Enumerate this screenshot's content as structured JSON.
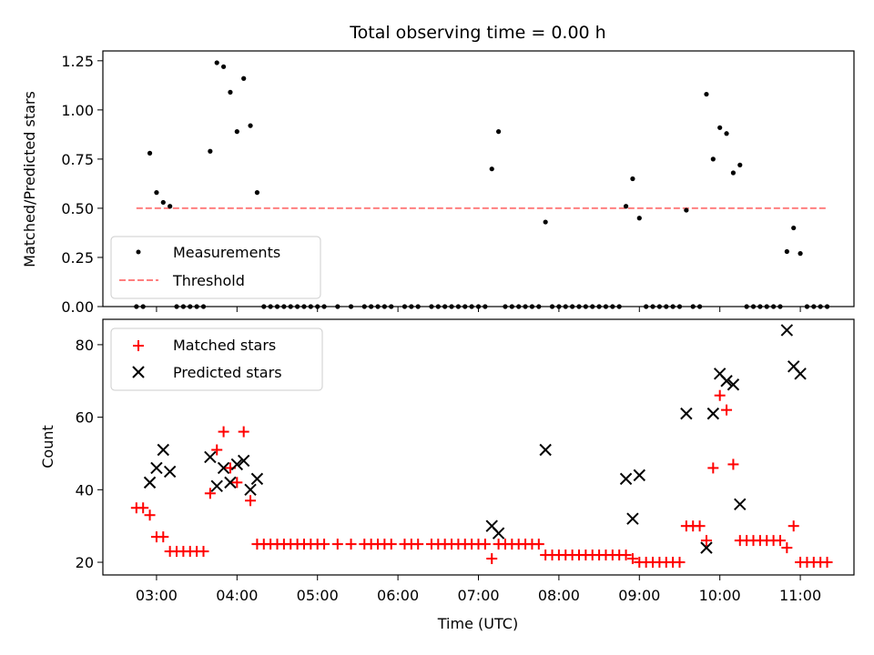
{
  "chart_data": [
    {
      "type": "scatter",
      "title": "Total observing time = 0.00 h",
      "ylabel": "Matched/Predicted stars",
      "xlim": [
        "02:20",
        "11:40"
      ],
      "ylim": [
        0,
        1.3
      ],
      "yticks": [
        "0.00",
        "0.25",
        "0.50",
        "0.75",
        "1.00",
        "1.25"
      ],
      "legend_position": "lower-left",
      "colors": {
        "measurements": "#000000",
        "threshold": "#ff7f7f"
      },
      "series": [
        {
          "name": "Measurements",
          "marker": "dot",
          "points": [
            [
              "02:45",
              0
            ],
            [
              "02:50",
              0
            ],
            [
              "02:55",
              0.78
            ],
            [
              "03:00",
              0.58
            ],
            [
              "03:05",
              0.53
            ],
            [
              "03:10",
              0.51
            ],
            [
              "03:15",
              0
            ],
            [
              "03:20",
              0
            ],
            [
              "03:25",
              0
            ],
            [
              "03:30",
              0
            ],
            [
              "03:35",
              0
            ],
            [
              "03:40",
              0.79
            ],
            [
              "03:45",
              1.24
            ],
            [
              "03:50",
              1.22
            ],
            [
              "03:55",
              1.09
            ],
            [
              "04:00",
              0.89
            ],
            [
              "04:05",
              1.16
            ],
            [
              "04:10",
              0.92
            ],
            [
              "04:15",
              0.58
            ],
            [
              "04:20",
              0
            ],
            [
              "04:25",
              0
            ],
            [
              "04:30",
              0
            ],
            [
              "04:35",
              0
            ],
            [
              "04:40",
              0
            ],
            [
              "04:45",
              0
            ],
            [
              "04:50",
              0
            ],
            [
              "04:55",
              0
            ],
            [
              "05:00",
              0
            ],
            [
              "05:05",
              0
            ],
            [
              "05:15",
              0
            ],
            [
              "05:25",
              0
            ],
            [
              "05:35",
              0
            ],
            [
              "05:40",
              0
            ],
            [
              "05:45",
              0
            ],
            [
              "05:50",
              0
            ],
            [
              "05:55",
              0
            ],
            [
              "06:05",
              0
            ],
            [
              "06:10",
              0
            ],
            [
              "06:15",
              0
            ],
            [
              "06:25",
              0
            ],
            [
              "06:30",
              0
            ],
            [
              "06:35",
              0
            ],
            [
              "06:40",
              0
            ],
            [
              "06:45",
              0
            ],
            [
              "06:50",
              0
            ],
            [
              "06:55",
              0
            ],
            [
              "07:00",
              0
            ],
            [
              "07:05",
              0
            ],
            [
              "07:10",
              0.7
            ],
            [
              "07:15",
              0.89
            ],
            [
              "07:20",
              0
            ],
            [
              "07:25",
              0
            ],
            [
              "07:30",
              0
            ],
            [
              "07:35",
              0
            ],
            [
              "07:40",
              0
            ],
            [
              "07:45",
              0
            ],
            [
              "07:50",
              0.43
            ],
            [
              "07:55",
              0
            ],
            [
              "08:00",
              0
            ],
            [
              "08:05",
              0
            ],
            [
              "08:10",
              0
            ],
            [
              "08:15",
              0
            ],
            [
              "08:20",
              0
            ],
            [
              "08:25",
              0
            ],
            [
              "08:30",
              0
            ],
            [
              "08:35",
              0
            ],
            [
              "08:40",
              0
            ],
            [
              "08:45",
              0
            ],
            [
              "08:50",
              0.51
            ],
            [
              "08:55",
              0.65
            ],
            [
              "09:00",
              0.45
            ],
            [
              "09:05",
              0
            ],
            [
              "09:10",
              0
            ],
            [
              "09:15",
              0
            ],
            [
              "09:20",
              0
            ],
            [
              "09:25",
              0
            ],
            [
              "09:30",
              0
            ],
            [
              "09:35",
              0.49
            ],
            [
              "09:40",
              0
            ],
            [
              "09:45",
              0
            ],
            [
              "09:50",
              1.08
            ],
            [
              "09:55",
              0.75
            ],
            [
              "10:00",
              0.91
            ],
            [
              "10:05",
              0.88
            ],
            [
              "10:10",
              0.68
            ],
            [
              "10:15",
              0.72
            ],
            [
              "10:20",
              0
            ],
            [
              "10:25",
              0
            ],
            [
              "10:30",
              0
            ],
            [
              "10:35",
              0
            ],
            [
              "10:40",
              0
            ],
            [
              "10:45",
              0
            ],
            [
              "10:50",
              0.28
            ],
            [
              "10:55",
              0.4
            ],
            [
              "11:00",
              0.27
            ],
            [
              "11:05",
              0
            ],
            [
              "11:10",
              0
            ],
            [
              "11:15",
              0
            ],
            [
              "11:20",
              0
            ]
          ]
        },
        {
          "name": "Threshold",
          "style": "dashed-line",
          "points": [
            [
              "02:45",
              0.5
            ],
            [
              "11:20",
              0.5
            ]
          ]
        }
      ]
    },
    {
      "type": "scatter",
      "xlabel": "Time (UTC)",
      "ylabel": "Count",
      "xlim": [
        "02:20",
        "11:40"
      ],
      "ylim": [
        16.5,
        87
      ],
      "yticks": [
        "20",
        "40",
        "60",
        "80"
      ],
      "xticks": [
        "03:00",
        "04:00",
        "05:00",
        "06:00",
        "07:00",
        "08:00",
        "09:00",
        "10:00",
        "11:00"
      ],
      "legend_position": "top-left",
      "colors": {
        "matched": "#ff0000",
        "predicted": "#000000"
      },
      "series": [
        {
          "name": "Matched stars",
          "marker": "plus",
          "points": [
            [
              "02:45",
              35
            ],
            [
              "02:50",
              35
            ],
            [
              "02:55",
              33
            ],
            [
              "03:00",
              27
            ],
            [
              "03:05",
              27
            ],
            [
              "03:10",
              23
            ],
            [
              "03:15",
              23
            ],
            [
              "03:20",
              23
            ],
            [
              "03:25",
              23
            ],
            [
              "03:30",
              23
            ],
            [
              "03:35",
              23
            ],
            [
              "03:40",
              39
            ],
            [
              "03:45",
              51
            ],
            [
              "03:50",
              56
            ],
            [
              "03:55",
              46
            ],
            [
              "04:00",
              42
            ],
            [
              "04:05",
              56
            ],
            [
              "04:10",
              37
            ],
            [
              "04:15",
              25
            ],
            [
              "04:20",
              25
            ],
            [
              "04:25",
              25
            ],
            [
              "04:30",
              25
            ],
            [
              "04:35",
              25
            ],
            [
              "04:40",
              25
            ],
            [
              "04:45",
              25
            ],
            [
              "04:50",
              25
            ],
            [
              "04:55",
              25
            ],
            [
              "05:00",
              25
            ],
            [
              "05:05",
              25
            ],
            [
              "05:15",
              25
            ],
            [
              "05:25",
              25
            ],
            [
              "05:35",
              25
            ],
            [
              "05:40",
              25
            ],
            [
              "05:45",
              25
            ],
            [
              "05:50",
              25
            ],
            [
              "05:55",
              25
            ],
            [
              "06:05",
              25
            ],
            [
              "06:10",
              25
            ],
            [
              "06:15",
              25
            ],
            [
              "06:25",
              25
            ],
            [
              "06:30",
              25
            ],
            [
              "06:35",
              25
            ],
            [
              "06:40",
              25
            ],
            [
              "06:45",
              25
            ],
            [
              "06:50",
              25
            ],
            [
              "06:55",
              25
            ],
            [
              "07:00",
              25
            ],
            [
              "07:05",
              25
            ],
            [
              "07:10",
              21
            ],
            [
              "07:15",
              25
            ],
            [
              "07:20",
              25
            ],
            [
              "07:25",
              25
            ],
            [
              "07:30",
              25
            ],
            [
              "07:35",
              25
            ],
            [
              "07:40",
              25
            ],
            [
              "07:45",
              25
            ],
            [
              "07:50",
              22
            ],
            [
              "07:55",
              22
            ],
            [
              "08:00",
              22
            ],
            [
              "08:05",
              22
            ],
            [
              "08:10",
              22
            ],
            [
              "08:15",
              22
            ],
            [
              "08:20",
              22
            ],
            [
              "08:25",
              22
            ],
            [
              "08:30",
              22
            ],
            [
              "08:35",
              22
            ],
            [
              "08:40",
              22
            ],
            [
              "08:45",
              22
            ],
            [
              "08:50",
              22
            ],
            [
              "08:55",
              21
            ],
            [
              "09:00",
              20
            ],
            [
              "09:05",
              20
            ],
            [
              "09:10",
              20
            ],
            [
              "09:15",
              20
            ],
            [
              "09:20",
              20
            ],
            [
              "09:25",
              20
            ],
            [
              "09:30",
              20
            ],
            [
              "09:35",
              30
            ],
            [
              "09:40",
              30
            ],
            [
              "09:45",
              30
            ],
            [
              "09:50",
              26
            ],
            [
              "09:55",
              46
            ],
            [
              "10:00",
              66
            ],
            [
              "10:05",
              62
            ],
            [
              "10:10",
              47
            ],
            [
              "10:15",
              26
            ],
            [
              "10:20",
              26
            ],
            [
              "10:25",
              26
            ],
            [
              "10:30",
              26
            ],
            [
              "10:35",
              26
            ],
            [
              "10:40",
              26
            ],
            [
              "10:45",
              26
            ],
            [
              "10:50",
              24
            ],
            [
              "10:55",
              30
            ],
            [
              "11:00",
              20
            ],
            [
              "11:05",
              20
            ],
            [
              "11:10",
              20
            ],
            [
              "11:15",
              20
            ],
            [
              "11:20",
              20
            ]
          ]
        },
        {
          "name": "Predicted stars",
          "marker": "x",
          "points": [
            [
              "02:55",
              42
            ],
            [
              "03:00",
              46
            ],
            [
              "03:05",
              51
            ],
            [
              "03:10",
              45
            ],
            [
              "03:40",
              49
            ],
            [
              "03:45",
              41
            ],
            [
              "03:50",
              46
            ],
            [
              "03:55",
              42
            ],
            [
              "04:00",
              47
            ],
            [
              "04:05",
              48
            ],
            [
              "04:10",
              40
            ],
            [
              "04:15",
              43
            ],
            [
              "07:10",
              30
            ],
            [
              "07:15",
              28
            ],
            [
              "07:50",
              51
            ],
            [
              "08:50",
              43
            ],
            [
              "08:55",
              32
            ],
            [
              "09:00",
              44
            ],
            [
              "09:35",
              61
            ],
            [
              "09:50",
              24
            ],
            [
              "09:55",
              61
            ],
            [
              "10:00",
              72
            ],
            [
              "10:05",
              70
            ],
            [
              "10:10",
              69
            ],
            [
              "10:15",
              36
            ],
            [
              "10:50",
              84
            ],
            [
              "10:55",
              74
            ],
            [
              "11:00",
              72
            ]
          ]
        }
      ]
    }
  ]
}
